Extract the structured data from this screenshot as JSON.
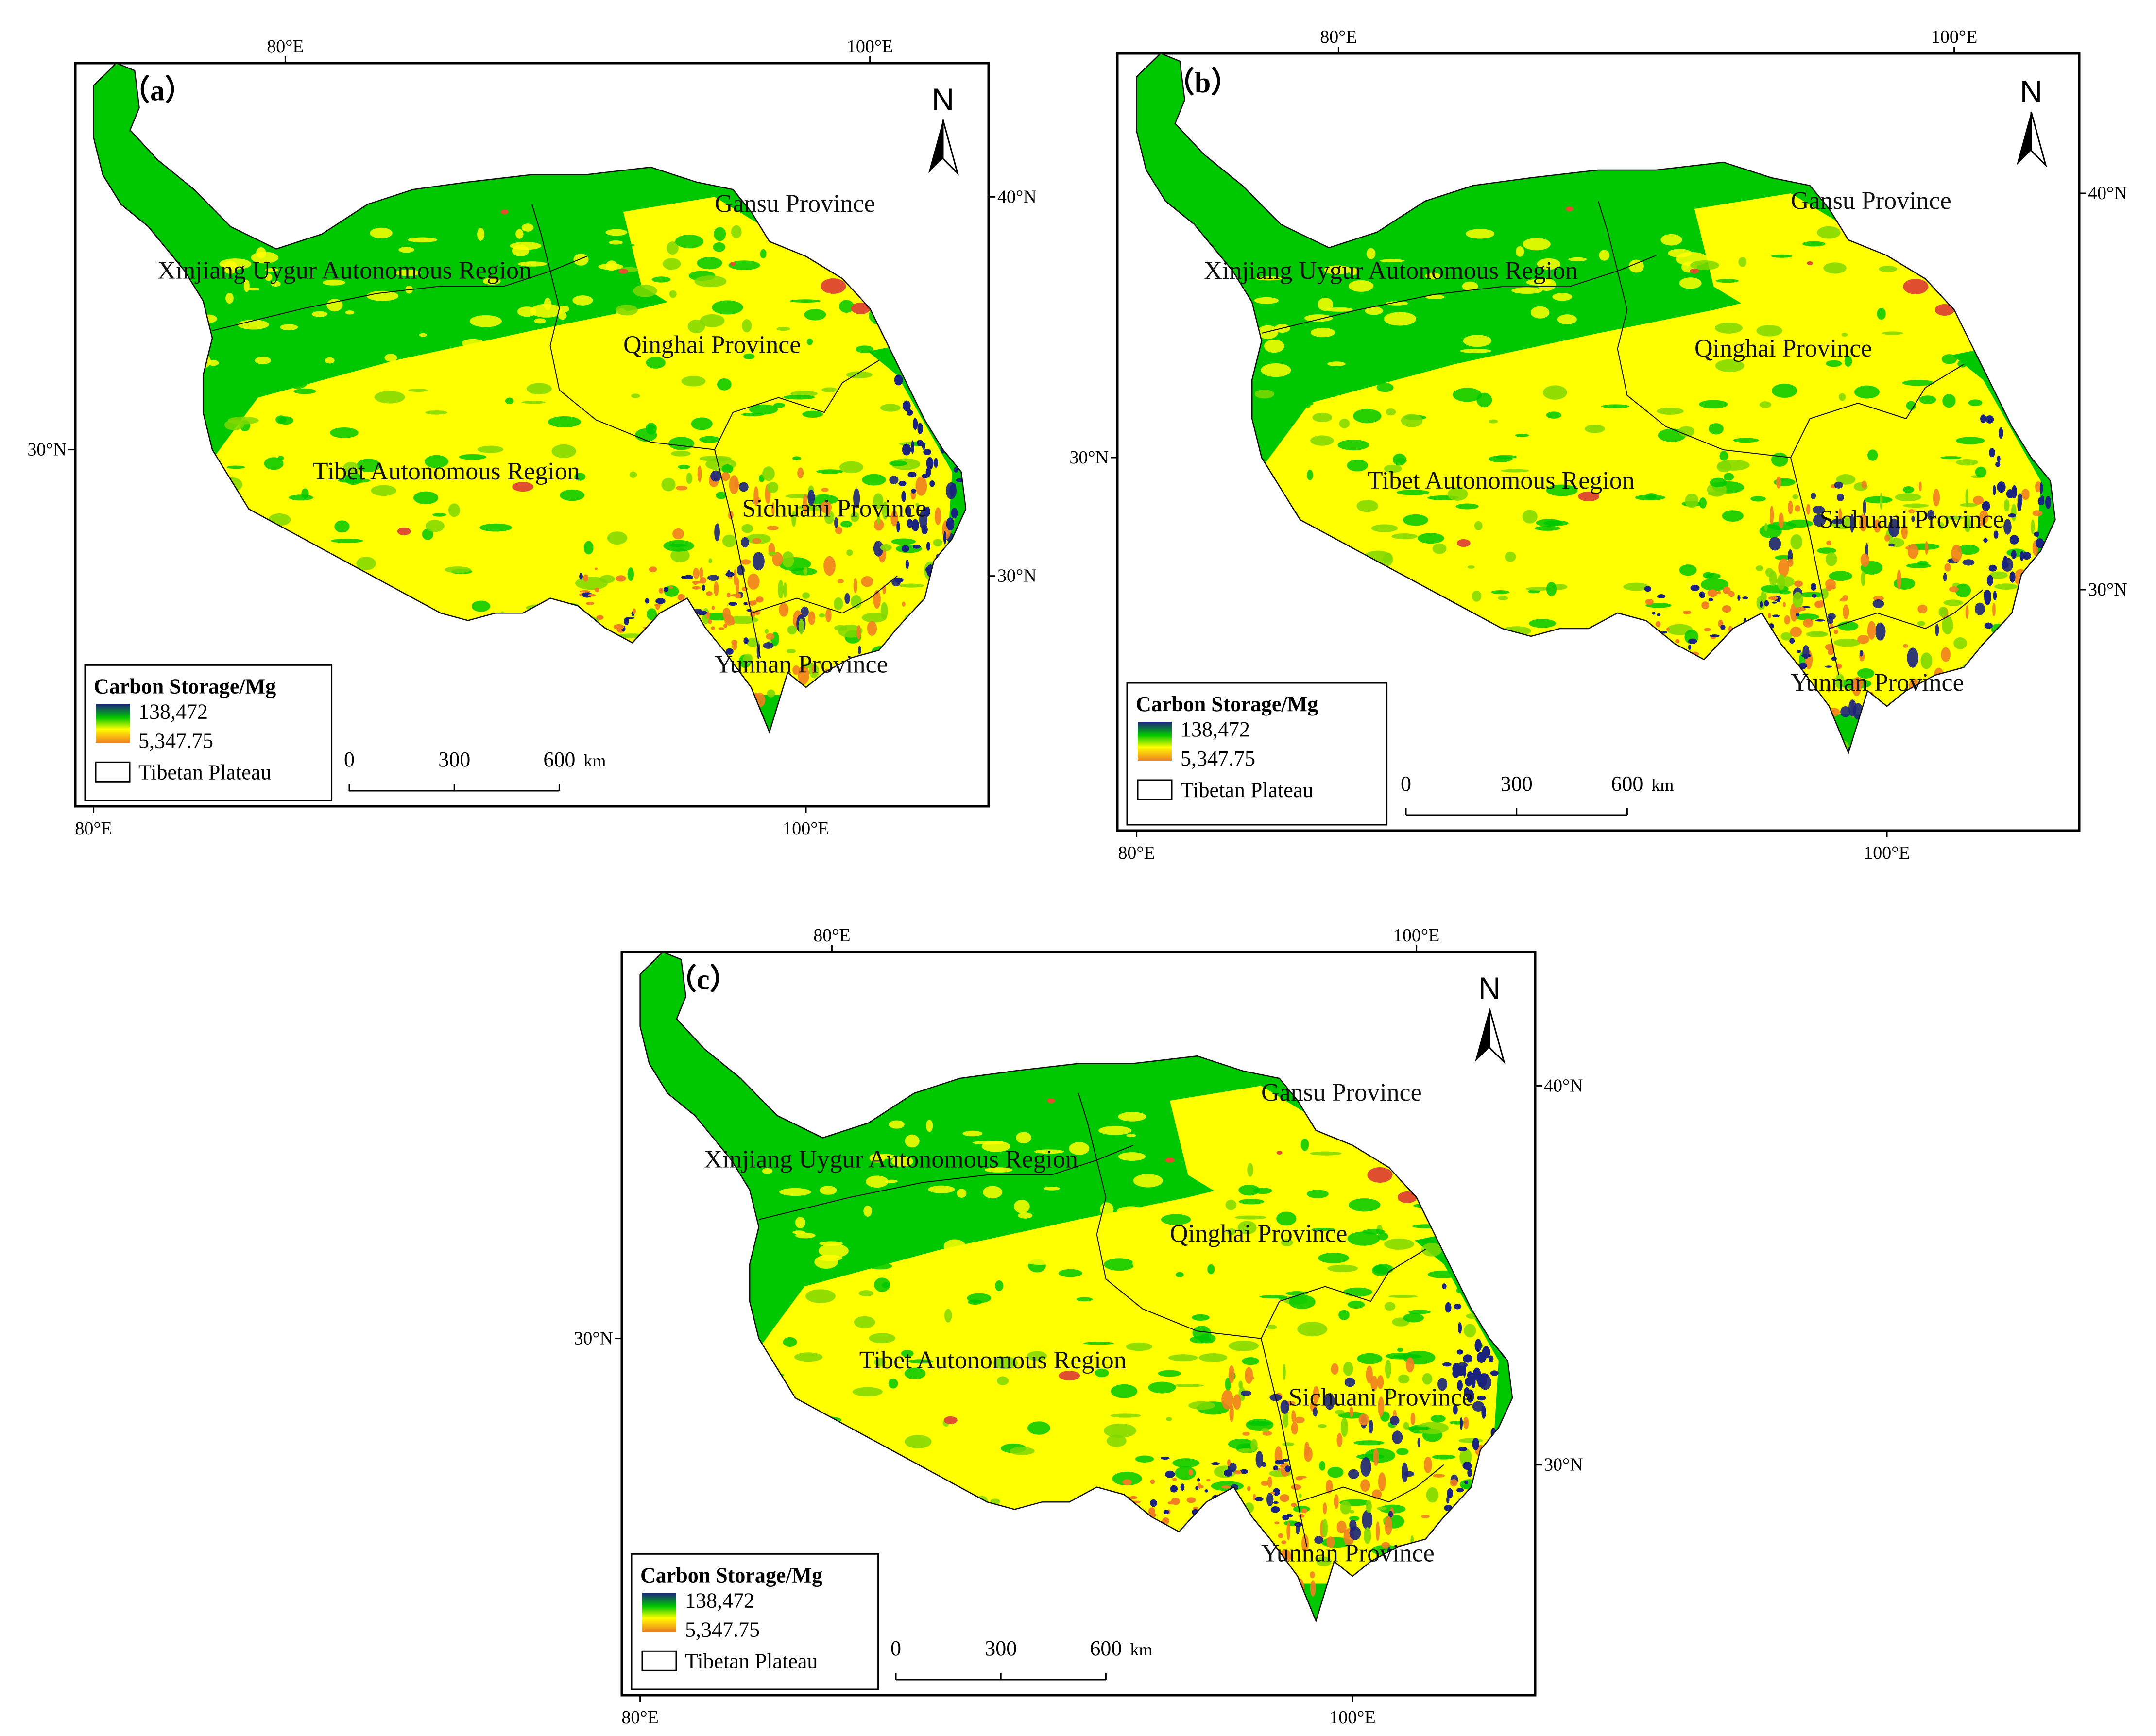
{
  "panels": [
    {
      "label": "（a）",
      "regions": [
        "Gansu Province",
        "Xinjiang Uygur Autonomous Region",
        "Qinghai Province",
        "Tibet Autonomous Region",
        "Sichuani Province",
        "Yunnan Province"
      ],
      "lon_top": [
        "80°E",
        "100°E"
      ],
      "lon_bottom": [
        "80°E",
        "100°E"
      ],
      "lat_left": [
        "30°N"
      ],
      "lat_right": [
        "40°N",
        "30°N"
      ],
      "north": "N",
      "legend": {
        "title": "Carbon Storage/Mg",
        "high": "138,472",
        "low": "5,347.75",
        "boundary": "Tibetan Plateau"
      },
      "scale": {
        "ticks": [
          "0",
          "300",
          "600"
        ],
        "unit": "km"
      }
    },
    {
      "label": "（b）",
      "regions": [
        "Gansu Province",
        "Xinjiang Uygur Autonomous Region",
        "Qinghai Province",
        "Tibet Autonomous Region",
        "Sichuani Province",
        "Yunnan Province"
      ],
      "lon_top": [
        "80°E",
        "100°E"
      ],
      "lon_bottom": [
        "80°E",
        "100°E"
      ],
      "lat_left": [
        "30°N"
      ],
      "lat_right": [
        "40°N",
        "30°N"
      ],
      "north": "N",
      "legend": {
        "title": "Carbon Storage/Mg",
        "high": "138,472",
        "low": "5,347.75",
        "boundary": "Tibetan Plateau"
      },
      "scale": {
        "ticks": [
          "0",
          "300",
          "600"
        ],
        "unit": "km"
      }
    },
    {
      "label": "（c）",
      "regions": [
        "Gansu Province",
        "Xinjiang Uygur Autonomous Region",
        "Qinghai Province",
        "Tibet Autonomous Region",
        "Sichuani Province",
        "Yunnan Province"
      ],
      "lon_top": [
        "80°E",
        "100°E"
      ],
      "lon_bottom": [
        "80°E",
        "100°E"
      ],
      "lat_left": [
        "30°N"
      ],
      "lat_right": [
        "40°N",
        "30°N"
      ],
      "north": "N",
      "legend": {
        "title": "Carbon Storage/Mg",
        "high": "138,472",
        "low": "5,347.75",
        "boundary": "Tibetan Plateau"
      },
      "scale": {
        "ticks": [
          "0",
          "300",
          "600"
        ],
        "unit": "km"
      }
    }
  ],
  "colors": {
    "high_forest": "#1a237e",
    "green": "#00c800",
    "light_green": "#7fd800",
    "yellow": "#ffff00",
    "orange": "#f08020",
    "red": "#e05030",
    "frame": "#000000"
  }
}
